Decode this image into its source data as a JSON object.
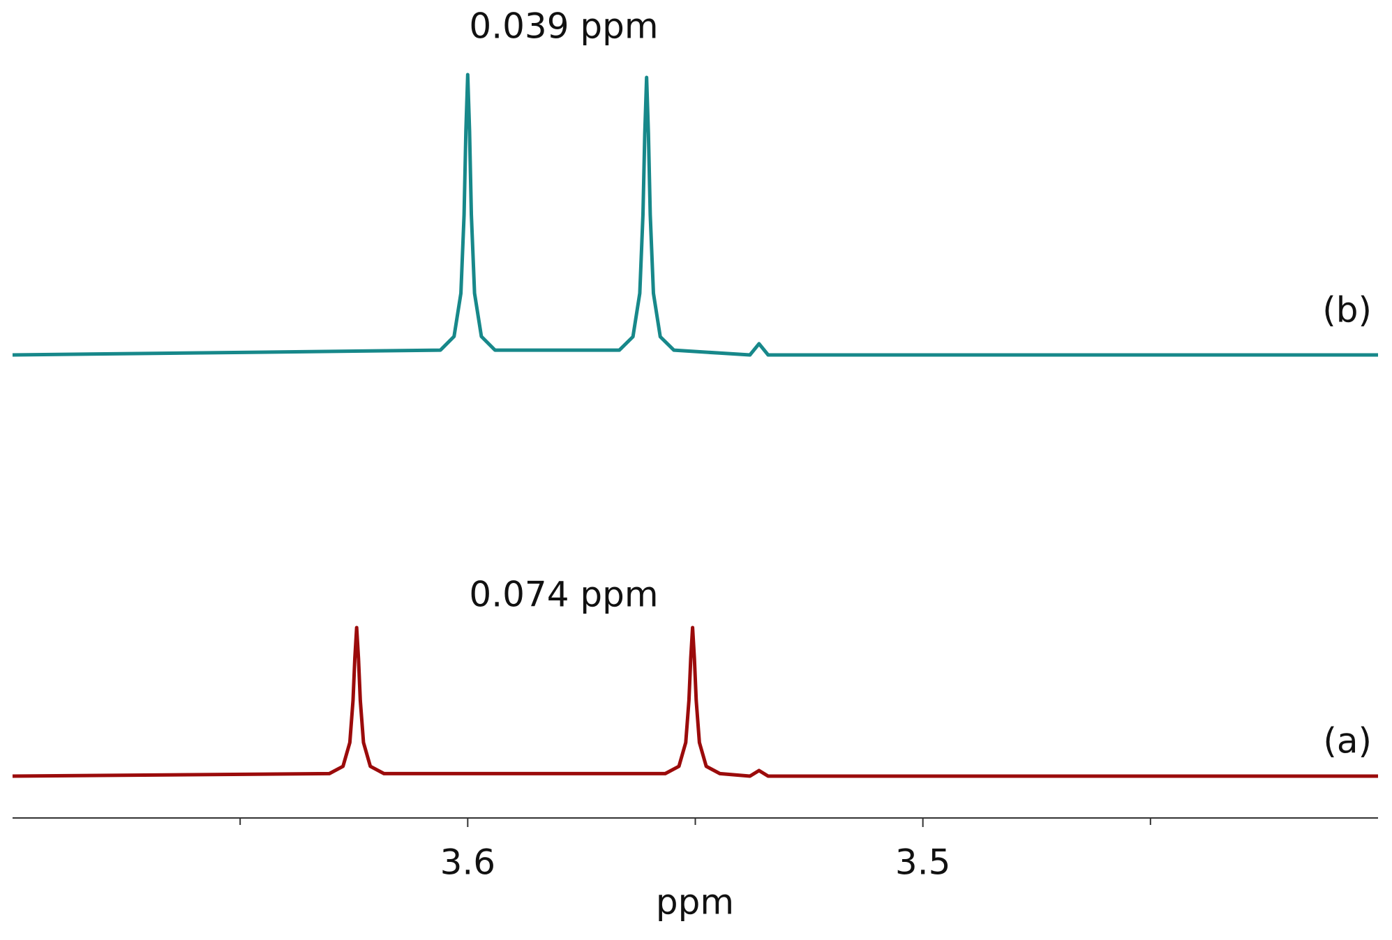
{
  "chart_data": {
    "type": "line",
    "xlabel": "ppm",
    "xlim": [
      3.7,
      3.4
    ],
    "xticks": [
      3.6,
      3.5
    ],
    "minor_xticks": [
      3.65,
      3.55,
      3.45
    ],
    "annotations": [
      "0.039 ppm",
      "0.074 ppm"
    ],
    "series": [
      {
        "name": "(b)",
        "color": "#17888a",
        "x": [
          3.7,
          3.606,
          3.603,
          3.6015,
          3.6008,
          3.6004,
          3.6,
          3.5996,
          3.5992,
          3.5985,
          3.597,
          3.594,
          3.5667,
          3.5637,
          3.5622,
          3.5615,
          3.5611,
          3.5607,
          3.5603,
          3.5599,
          3.5592,
          3.5577,
          3.5547,
          3.538,
          3.536,
          3.534,
          3.4
        ],
        "values": [
          0,
          1.7,
          6.6,
          22,
          50,
          80,
          100,
          80,
          50,
          22,
          6.6,
          1.7,
          1.7,
          6.5,
          22,
          50,
          79,
          99,
          79,
          50,
          22,
          6.5,
          1.7,
          0,
          4,
          0,
          0
        ]
      },
      {
        "name": "(a)",
        "color": "#9b0b0b",
        "x": [
          3.7,
          3.6304,
          3.6274,
          3.6259,
          3.6252,
          3.6248,
          3.6244,
          3.624,
          3.6236,
          3.6229,
          3.6214,
          3.6184,
          3.5566,
          3.5536,
          3.5521,
          3.5514,
          3.551,
          3.5506,
          3.5502,
          3.5498,
          3.5491,
          3.5476,
          3.5446,
          3.538,
          3.536,
          3.534,
          3.4
        ],
        "values": [
          0,
          0.9,
          3.5,
          12,
          27,
          42,
          53,
          42,
          27,
          12,
          3.5,
          0.9,
          0.9,
          3.5,
          12,
          27,
          42,
          53,
          42,
          27,
          12,
          3.5,
          0.9,
          0,
          2,
          0,
          0
        ]
      }
    ]
  }
}
